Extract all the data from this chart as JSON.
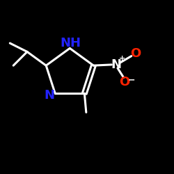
{
  "fig_bg": "#000000",
  "white": "#ffffff",
  "blue": "#2222ff",
  "red": "#ff2200",
  "lw": 2.2,
  "NH_label": "NH",
  "N_label": "N",
  "Nplus_label": "N",
  "Oplus_label": "O",
  "Ominus_label": "O",
  "plus_label": "+",
  "minus_label": "−",
  "font_size": 13
}
